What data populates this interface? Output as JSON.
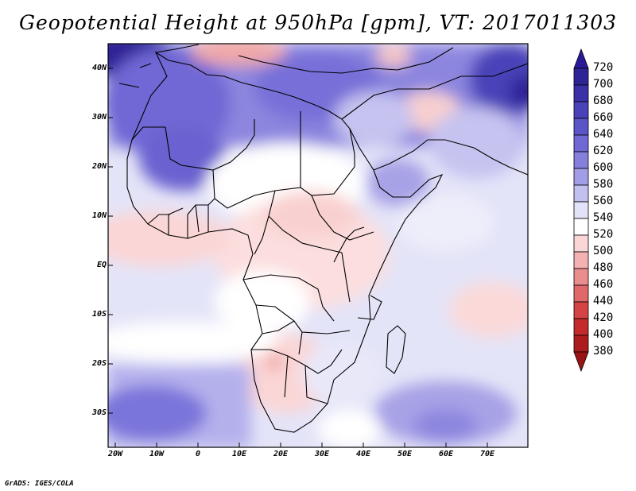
{
  "title": "Geopotential Height at 950hPa [gpm], VT: 2017011303",
  "credit": "GrADS: IGES/COLA",
  "map": {
    "region": "Africa",
    "lat_labels": [
      "40N",
      "30N",
      "20N",
      "10N",
      "EQ",
      "10S",
      "20S",
      "30S"
    ],
    "lon_labels": [
      "20W",
      "10W",
      "0",
      "10E",
      "20E",
      "30E",
      "40E",
      "50E",
      "60E",
      "70E"
    ]
  },
  "colorbar": {
    "units": "gpm",
    "levels": [
      "720",
      "700",
      "680",
      "660",
      "640",
      "620",
      "600",
      "580",
      "560",
      "540",
      "520",
      "500",
      "480",
      "460",
      "440",
      "420",
      "400",
      "380"
    ],
    "colors": {
      "top_arrow": "#2a1a9a",
      "band_700_720": "#2e2496",
      "band_680_700": "#3a31a6",
      "band_660_680": "#4a42b8",
      "band_640_660": "#5c55c8",
      "band_620_640": "#7068d4",
      "band_600_620": "#8680dd",
      "band_580_600": "#a19de6",
      "band_560_580": "#c2c0ef",
      "band_540_560": "#e2e2f8",
      "band_520_540": "#ffffff",
      "band_500_520": "#fbd6d6",
      "band_480_500": "#f3b1b1",
      "band_460_480": "#ea8d8d",
      "band_440_460": "#e06868",
      "band_420_440": "#d44444",
      "band_400_420": "#c42a2a",
      "band_380_400": "#ad1c1c",
      "bottom_arrow": "#9a1414"
    }
  }
}
